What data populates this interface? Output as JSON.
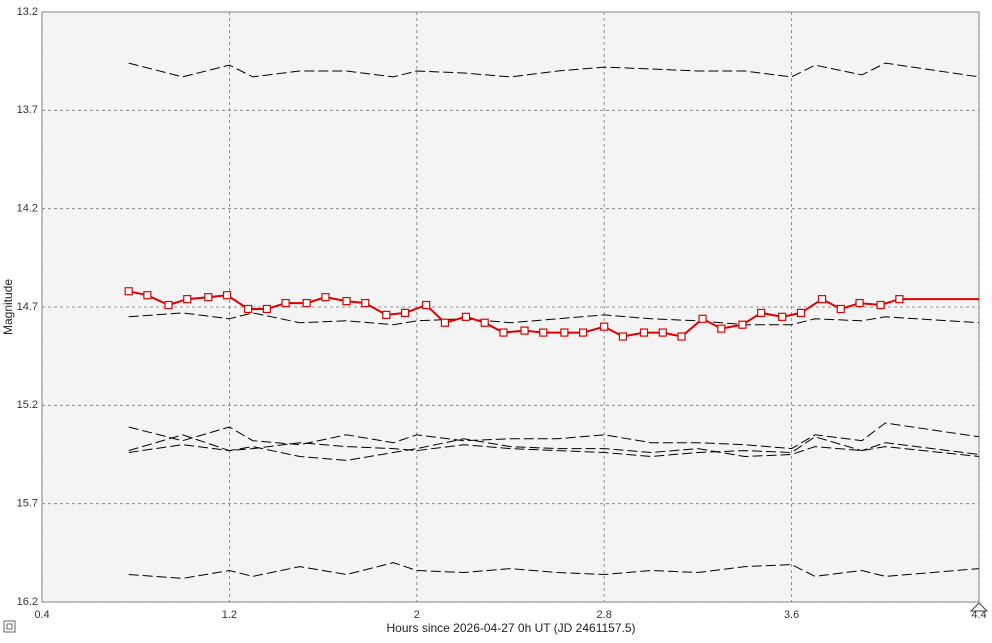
{
  "chart_data": {
    "type": "line",
    "xlabel": "Hours since 2026-04-27 0h UT (JD 2461157.5)",
    "ylabel": "Magnitude",
    "xlim": [
      0.4,
      4.4
    ],
    "xticks": [
      0.4,
      1.2,
      2,
      2.8,
      3.6,
      4.4
    ],
    "ylim": [
      16.2,
      13.2
    ],
    "yticks": [
      13.2,
      13.7,
      14.2,
      14.7,
      15.2,
      15.7,
      16.2
    ],
    "grid": true,
    "series": [
      {
        "color": "#000000",
        "dashed": true,
        "markers": false,
        "x": [
          0.77,
          1.0,
          1.2,
          1.3,
          1.5,
          1.7,
          1.9,
          2.0,
          2.2,
          2.4,
          2.6,
          2.8,
          3.0,
          3.2,
          3.4,
          3.6,
          3.7,
          3.9,
          4.0,
          4.4
        ],
        "values": [
          13.46,
          13.53,
          13.47,
          13.53,
          13.5,
          13.5,
          13.53,
          13.5,
          13.51,
          13.53,
          13.5,
          13.48,
          13.49,
          13.5,
          13.5,
          13.53,
          13.47,
          13.52,
          13.46,
          13.53
        ]
      },
      {
        "color": "#000000",
        "dashed": true,
        "markers": false,
        "x": [
          0.77,
          1.0,
          1.2,
          1.3,
          1.5,
          1.7,
          1.9,
          2.0,
          2.2,
          2.4,
          2.6,
          2.8,
          3.0,
          3.2,
          3.4,
          3.6,
          3.7,
          3.9,
          4.0,
          4.4
        ],
        "values": [
          14.75,
          14.73,
          14.76,
          14.73,
          14.78,
          14.77,
          14.79,
          14.77,
          14.76,
          14.78,
          14.76,
          14.74,
          14.76,
          14.77,
          14.79,
          14.79,
          14.76,
          14.77,
          14.75,
          14.78
        ]
      },
      {
        "color": "#000000",
        "dashed": true,
        "markers": false,
        "x": [
          0.77,
          1.0,
          1.2,
          1.3,
          1.5,
          1.7,
          1.9,
          2.0,
          2.2,
          2.4,
          2.6,
          2.8,
          3.0,
          3.2,
          3.4,
          3.6,
          3.7,
          3.9,
          4.0,
          4.4
        ],
        "values": [
          15.31,
          15.38,
          15.31,
          15.38,
          15.4,
          15.35,
          15.39,
          15.35,
          15.38,
          15.37,
          15.37,
          15.35,
          15.39,
          15.39,
          15.4,
          15.42,
          15.35,
          15.38,
          15.29,
          15.36
        ]
      },
      {
        "color": "#000000",
        "dashed": true,
        "markers": false,
        "x": [
          0.77,
          1.0,
          1.2,
          1.3,
          1.5,
          1.7,
          1.9,
          2.0,
          2.2,
          2.4,
          2.6,
          2.8,
          3.0,
          3.2,
          3.4,
          3.6,
          3.7,
          3.9,
          4.0,
          4.4
        ],
        "values": [
          15.43,
          15.35,
          15.43,
          15.42,
          15.39,
          15.41,
          15.42,
          15.43,
          15.4,
          15.42,
          15.43,
          15.44,
          15.46,
          15.44,
          15.43,
          15.44,
          15.36,
          15.43,
          15.39,
          15.45
        ]
      },
      {
        "color": "#000000",
        "dashed": true,
        "markers": false,
        "x": [
          0.77,
          1.0,
          1.2,
          1.3,
          1.5,
          1.7,
          1.9,
          2.0,
          2.2,
          2.4,
          2.6,
          2.8,
          3.0,
          3.2,
          3.4,
          3.6,
          3.7,
          3.9,
          4.0,
          4.4
        ],
        "values": [
          15.44,
          15.4,
          15.43,
          15.41,
          15.46,
          15.48,
          15.44,
          15.42,
          15.37,
          15.41,
          15.42,
          15.42,
          15.44,
          15.42,
          15.46,
          15.45,
          15.41,
          15.43,
          15.41,
          15.46
        ]
      },
      {
        "color": "#000000",
        "dashed": true,
        "markers": false,
        "x": [
          0.77,
          1.0,
          1.2,
          1.3,
          1.5,
          1.7,
          1.9,
          2.0,
          2.2,
          2.4,
          2.6,
          2.8,
          3.0,
          3.2,
          3.4,
          3.6,
          3.7,
          3.9,
          4.0,
          4.4
        ],
        "values": [
          16.06,
          16.08,
          16.04,
          16.07,
          16.02,
          16.06,
          16.0,
          16.04,
          16.05,
          16.03,
          16.05,
          16.06,
          16.04,
          16.05,
          16.02,
          16.01,
          16.07,
          16.04,
          16.07,
          16.03
        ]
      },
      {
        "color": "#e00000",
        "dashed": false,
        "markers": true,
        "extend_to_edge": true,
        "x": [
          0.77,
          0.85,
          0.94,
          1.02,
          1.11,
          1.19,
          1.28,
          1.36,
          1.44,
          1.53,
          1.61,
          1.7,
          1.78,
          1.87,
          1.95,
          2.04,
          2.12,
          2.21,
          2.29,
          2.37,
          2.46,
          2.54,
          2.63,
          2.71,
          2.8,
          2.88,
          2.97,
          3.05,
          3.13,
          3.22,
          3.3,
          3.39,
          3.47,
          3.56,
          3.64,
          3.73,
          3.81,
          3.89,
          3.98,
          4.06
        ],
        "values": [
          14.62,
          14.64,
          14.69,
          14.66,
          14.65,
          14.64,
          14.71,
          14.71,
          14.68,
          14.68,
          14.65,
          14.67,
          14.68,
          14.74,
          14.73,
          14.69,
          14.78,
          14.75,
          14.78,
          14.83,
          14.82,
          14.83,
          14.83,
          14.83,
          14.8,
          14.85,
          14.83,
          14.83,
          14.85,
          14.76,
          14.81,
          14.79,
          14.73,
          14.75,
          14.73,
          14.66,
          14.71,
          14.68,
          14.69,
          14.66
        ]
      }
    ]
  }
}
